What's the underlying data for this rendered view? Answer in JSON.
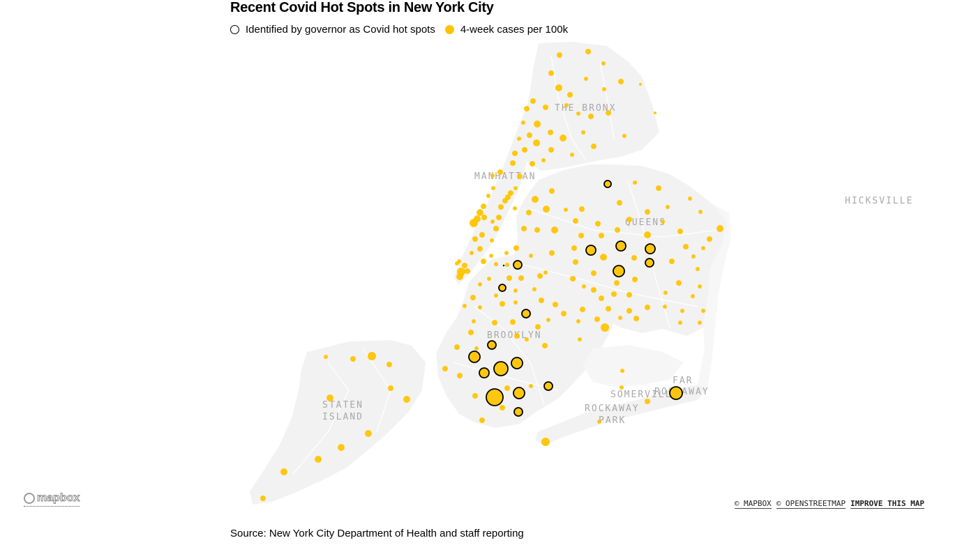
{
  "title": "Recent Covid Hot Spots in New York City",
  "legend": {
    "hot_spot_label": "Identified by governor as Covid hot spots",
    "cases_label": "4-week cases per 100k"
  },
  "colors": {
    "dot": "#ffc400",
    "land": "#f2f2f2",
    "outline": "#000000",
    "label": "#a8a8a8"
  },
  "place_labels": {
    "bronx": "THE BRONX",
    "manhattan": "MANHATTAN",
    "queens": "QUEENS",
    "brooklyn": "BROOKLYN",
    "staten_1": "STATEN",
    "staten_2": "ISLAND",
    "far_1": "FAR",
    "far_2": "ROCKAWAY",
    "somerville": "SOMERVILLE",
    "rockaway_1": "ROCKAWAY",
    "rockaway_2": "PARK",
    "hicksville": "HICKSVILLE"
  },
  "map_logo": "mapbox",
  "attribution": {
    "mapbox": "© MAPBOX",
    "osm": "© OPENSTREETMAP",
    "improve": "IMPROVE THIS MAP"
  },
  "source": "Source: New York City Department of Health and staff reporting"
}
